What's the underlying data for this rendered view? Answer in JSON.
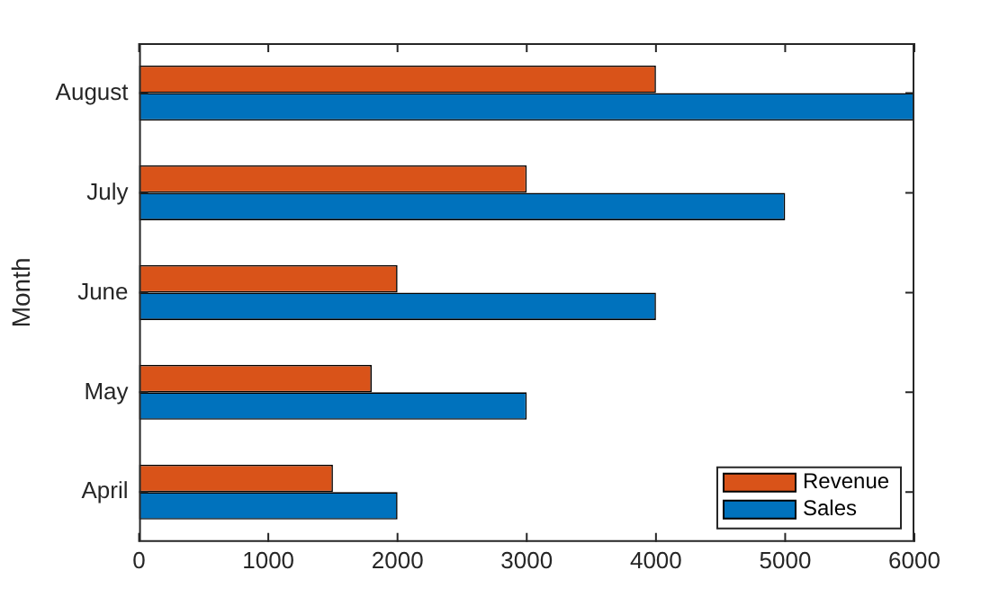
{
  "chart_data": {
    "type": "bar",
    "orientation": "horizontal",
    "ylabel": "Month",
    "categories": [
      "August",
      "July",
      "June",
      "May",
      "April"
    ],
    "series": [
      {
        "name": "Revenue",
        "color": "#d95319",
        "values": [
          4000,
          3000,
          2000,
          1800,
          1500
        ]
      },
      {
        "name": "Sales",
        "color": "#0072bd",
        "values": [
          6000,
          5000,
          4000,
          3000,
          2000
        ]
      }
    ],
    "xlim": [
      0,
      6000
    ],
    "xticks": [
      0,
      1000,
      2000,
      3000,
      4000,
      5000,
      6000
    ],
    "grid": false,
    "legend": "bottom right"
  }
}
